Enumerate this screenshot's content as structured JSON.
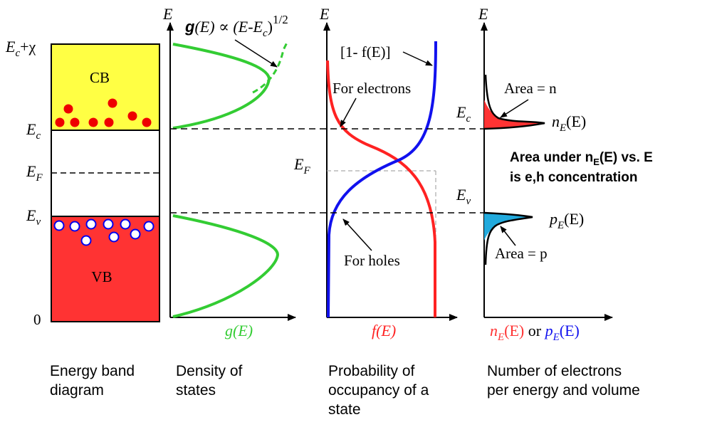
{
  "energy_band": {
    "top_label": {
      "E": "E",
      "sub": "c",
      "rest": "+χ"
    },
    "ec_label": {
      "E": "E",
      "sub": "c"
    },
    "ef_label": {
      "E": "E",
      "sub": "F"
    },
    "ev_label": {
      "E": "E",
      "sub": "v"
    },
    "zero_label": "0",
    "cb_label": "CB",
    "vb_label": "VB",
    "caption_line1": "Energy band",
    "caption_line2": "diagram",
    "cb_color": "#ffff44",
    "vb_color": "#ff3333",
    "electron_color": "#ee0000",
    "hole_color": "#0000ee"
  },
  "dos": {
    "axis_E": "E",
    "formula_g": "g",
    "formula_rest": "(E) ∝ (E-E",
    "formula_sub": "c",
    "formula_close": ")",
    "formula_exp": "1/2",
    "axis_label": "g(E)",
    "caption_line1": "Density of",
    "caption_line2": "states",
    "curve_color": "#33cc33"
  },
  "fermi": {
    "axis_E": "E",
    "one_minus_f": "[1- f(E)]",
    "electrons_label": "For electrons",
    "holes_label": "For holes",
    "ef_label": {
      "E": "E",
      "sub": "F"
    },
    "axis_label": "f(E)",
    "caption_line1": "Probability of",
    "caption_line2": "occupancy of a",
    "caption_line3": "state",
    "electron_curve_color": "#ff2222",
    "hole_curve_color": "#1111ee"
  },
  "number": {
    "axis_E": "E",
    "ec_label": {
      "E": "E",
      "sub": "c"
    },
    "ev_label": {
      "E": "E",
      "sub": "v"
    },
    "area_n": "Area = n",
    "area_p": "Area = p",
    "nE_label": {
      "main": "n",
      "sub": "E",
      "rest": "(E)"
    },
    "pE_label": {
      "main": "p",
      "sub": "E",
      "rest": "(E)"
    },
    "bold_line1_pre": "Area under n",
    "bold_line1_sub": "E",
    "bold_line1_post": "(E) vs. E",
    "bold_line2": "is e,h concentration",
    "axis_label_n": "n",
    "axis_label_n_sub": "E",
    "axis_label_n_rest": "(E)",
    "axis_label_or": " or ",
    "axis_label_p": "p",
    "axis_label_p_sub": "E",
    "axis_label_p_rest": "(E)",
    "caption_line1": "Number of electrons",
    "caption_line2": "per energy and volume",
    "n_fill_color": "#ff3333",
    "p_fill_color": "#22aadd"
  }
}
